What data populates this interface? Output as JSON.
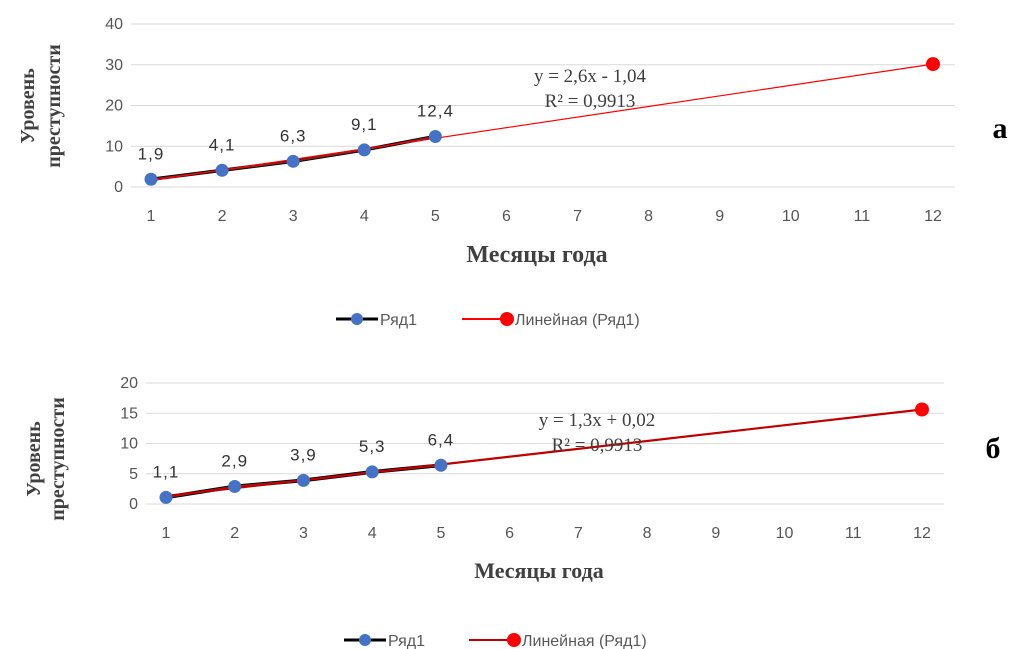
{
  "chart_data": [
    {
      "type": "line",
      "panel_label": "а",
      "x": [
        1,
        2,
        3,
        4,
        5
      ],
      "series": [
        {
          "name": "Ряд1",
          "values": [
            1.9,
            4.1,
            6.3,
            9.1,
            12.4
          ],
          "data_labels": [
            "1,9",
            "4,1",
            "6,3",
            "9,1",
            "12,4"
          ],
          "color": "#4472c4",
          "line_color": "#000000"
        }
      ],
      "trendline": {
        "name": "Линейная (Ряд1)",
        "slope": 2.6,
        "intercept": -1.04,
        "x_end": 12,
        "color": "#ff0000",
        "equation": "y = 2,6x - 1,04",
        "r2": "R² = 0,9913"
      },
      "xlabel": "Месяцы года",
      "ylabel": "Уровень преступности",
      "xticks": [
        "1",
        "2",
        "3",
        "4",
        "5",
        "6",
        "7",
        "8",
        "9",
        "10",
        "11",
        "12"
      ],
      "yticks": [
        "0",
        "10",
        "20",
        "30",
        "40"
      ],
      "ylim": [
        0,
        40
      ],
      "xlim": [
        1,
        12
      ],
      "grid": true,
      "legend": "bottom"
    },
    {
      "type": "line",
      "panel_label": "б",
      "x": [
        1,
        2,
        3,
        4,
        5
      ],
      "series": [
        {
          "name": "Ряд1",
          "values": [
            1.1,
            2.9,
            3.9,
            5.3,
            6.4
          ],
          "data_labels": [
            "1,1",
            "2,9",
            "3,9",
            "5,3",
            "6,4"
          ],
          "color": "#4472c4",
          "line_color": "#000000"
        }
      ],
      "trendline": {
        "name": "Линейная (Ряд1)",
        "slope": 1.3,
        "intercept": 0.02,
        "x_end": 12,
        "color": "#c00000",
        "equation": "y = 1,3x + 0,02",
        "r2": "R² = 0,9913"
      },
      "xlabel": "Месяцы года",
      "ylabel": "Уровень преступности",
      "xticks": [
        "1",
        "2",
        "3",
        "4",
        "5",
        "6",
        "7",
        "8",
        "9",
        "10",
        "11",
        "12"
      ],
      "yticks": [
        "0",
        "5",
        "10",
        "15",
        "20"
      ],
      "ylim": [
        0,
        20
      ],
      "xlim": [
        1,
        12
      ],
      "grid": true,
      "legend": "bottom"
    }
  ]
}
